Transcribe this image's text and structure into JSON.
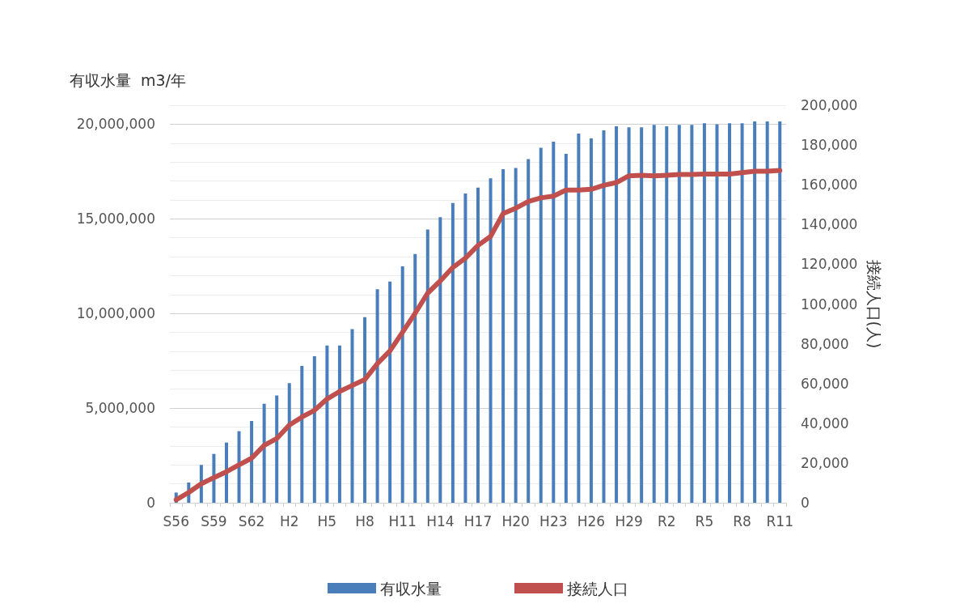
{
  "chart_data": {
    "type": "bar",
    "categories": [
      "S56",
      null,
      null,
      "S59",
      null,
      null,
      "S62",
      null,
      null,
      "H2",
      null,
      null,
      "H5",
      null,
      null,
      "H8",
      null,
      null,
      "H11",
      null,
      null,
      "H14",
      null,
      null,
      "H17",
      null,
      null,
      "H20",
      null,
      null,
      "H23",
      null,
      null,
      "H26",
      null,
      null,
      "H29",
      null,
      null,
      "R2",
      null,
      null,
      "R5",
      null,
      null,
      "R8",
      null,
      null,
      "R11"
    ],
    "series": [
      {
        "name": "有収水量",
        "color": "#4a7ebb",
        "values": [
          540000,
          1070000,
          2000000,
          2580000,
          3180000,
          3780000,
          4320000,
          5230000,
          5670000,
          6320000,
          7230000,
          7740000,
          8310000,
          8310000,
          9170000,
          9810000,
          11280000,
          11690000,
          12490000,
          13140000,
          14440000,
          15090000,
          15840000,
          16340000,
          16650000,
          17140000,
          17620000,
          17680000,
          18160000,
          18750000,
          19080000,
          18430000,
          19500000,
          19250000,
          19670000,
          19890000,
          19830000,
          19830000,
          19960000,
          19890000,
          19960000,
          19960000,
          20050000,
          20000000,
          20050000,
          20050000,
          20140000,
          20140000,
          20140000
        ]
      },
      {
        "name": "接続人口",
        "type": "line",
        "axis": "y2",
        "color": "#c0504d",
        "values": [
          1500,
          5200,
          9600,
          12600,
          15600,
          19100,
          22400,
          28900,
          32300,
          39100,
          43100,
          46500,
          52200,
          56000,
          59000,
          62000,
          70000,
          76400,
          85800,
          95300,
          105500,
          111600,
          118400,
          123100,
          129500,
          134000,
          145500,
          148200,
          151600,
          153400,
          154300,
          157300,
          157300,
          157700,
          159700,
          161100,
          164500,
          164800,
          164500,
          164800,
          165200,
          165200,
          165400,
          165400,
          165400,
          166100,
          166800,
          166800,
          167200
        ]
      }
    ],
    "ylabel": "有収水量  m3/年",
    "y2label": "接続人口(人)",
    "ylim": [
      0,
      21000000
    ],
    "yticks": [
      0,
      {
        "value": 1000000,
        "label": null
      },
      {
        "value": 2000000,
        "label": null
      },
      {
        "value": 3000000,
        "label": null
      },
      {
        "value": 4000000,
        "label": null
      },
      {
        "value": 5000000,
        "label": "5,000,000"
      },
      {
        "value": 6000000,
        "label": null
      },
      {
        "value": 7000000,
        "label": null
      },
      {
        "value": 8000000,
        "label": null
      },
      {
        "value": 9000000,
        "label": null
      },
      {
        "value": 10000000,
        "label": "10,000,000"
      },
      {
        "value": 11000000,
        "label": null
      },
      {
        "value": 12000000,
        "label": null
      },
      {
        "value": 13000000,
        "label": null
      },
      {
        "value": 14000000,
        "label": null
      },
      {
        "value": 15000000,
        "label": "15,000,000"
      },
      {
        "value": 16000000,
        "label": null
      },
      {
        "value": 17000000,
        "label": null
      },
      {
        "value": 18000000,
        "label": null
      },
      {
        "value": 19000000,
        "label": null
      },
      {
        "value": 20000000,
        "label": "20,000,000"
      },
      {
        "value": 21000000,
        "label": null
      }
    ],
    "y2lim": [
      0,
      200000
    ],
    "y2ticks": [
      0,
      {
        "value": 20000,
        "label": "20,000"
      },
      {
        "value": 40000,
        "label": "40,000"
      },
      {
        "value": 60000,
        "label": "60,000"
      },
      {
        "value": 80000,
        "label": "80,000"
      },
      {
        "value": 100000,
        "label": "100,000"
      },
      {
        "value": 120000,
        "label": "120,000"
      },
      {
        "value": 140000,
        "label": "140,000"
      },
      {
        "value": 160000,
        "label": "160,000"
      },
      {
        "value": 180000,
        "label": "180,000"
      },
      {
        "value": 200000,
        "label": "200,000"
      }
    ],
    "grid": "y",
    "legend": "bottom",
    "marker": "none",
    "line_style": "solid"
  }
}
